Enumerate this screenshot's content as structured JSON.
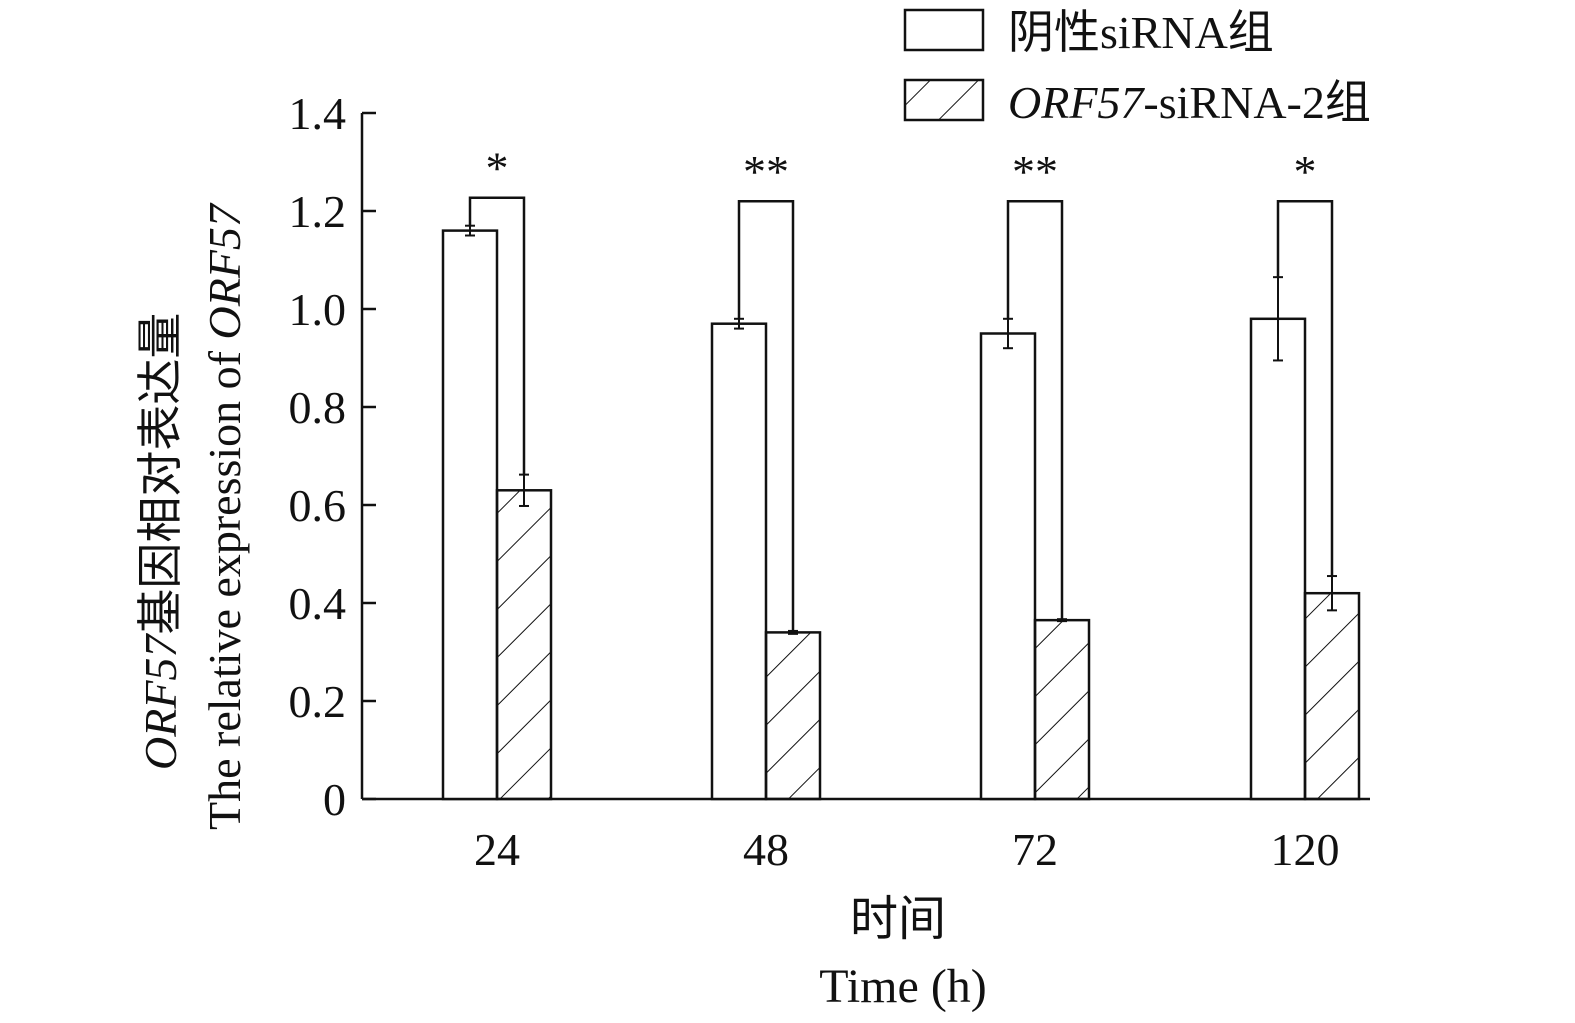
{
  "chart_data": {
    "type": "bar",
    "categories": [
      "24",
      "48",
      "72",
      "120"
    ],
    "series": [
      {
        "name": "阴性siRNA组",
        "values": [
          1.16,
          0.97,
          0.95,
          0.98
        ],
        "errors": [
          0.01,
          0.01,
          0.03,
          0.085
        ],
        "fill": "open"
      },
      {
        "name_italic": "ORF57",
        "name_rest": "-siRNA-2组",
        "values": [
          0.63,
          0.34,
          0.365,
          0.42
        ],
        "errors": [
          0.032,
          0.003,
          0.002,
          0.035
        ],
        "fill": "hatched"
      }
    ],
    "significance": [
      "*",
      "**",
      "**",
      "*"
    ],
    "xlabel_cn": "时间",
    "xlabel_en": "Time (h)",
    "ylabel_cn_italic": "ORF57",
    "ylabel_cn_rest": "基因相对表达量",
    "ylabel_en_rest": "The relative expression of ",
    "ylabel_en_italic": "ORF57",
    "ylim": [
      0,
      1.4
    ],
    "yticks": [
      "0",
      "0.2",
      "0.4",
      "0.6",
      "0.8",
      "1.0",
      "1.2",
      "1.4"
    ],
    "ytick_values": [
      0,
      0.2,
      0.4,
      0.6,
      0.8,
      1.0,
      1.2,
      1.4
    ],
    "grid": false,
    "legend_position": "top-right",
    "colors": {
      "stroke": "#111111",
      "background": "#ffffff"
    }
  }
}
